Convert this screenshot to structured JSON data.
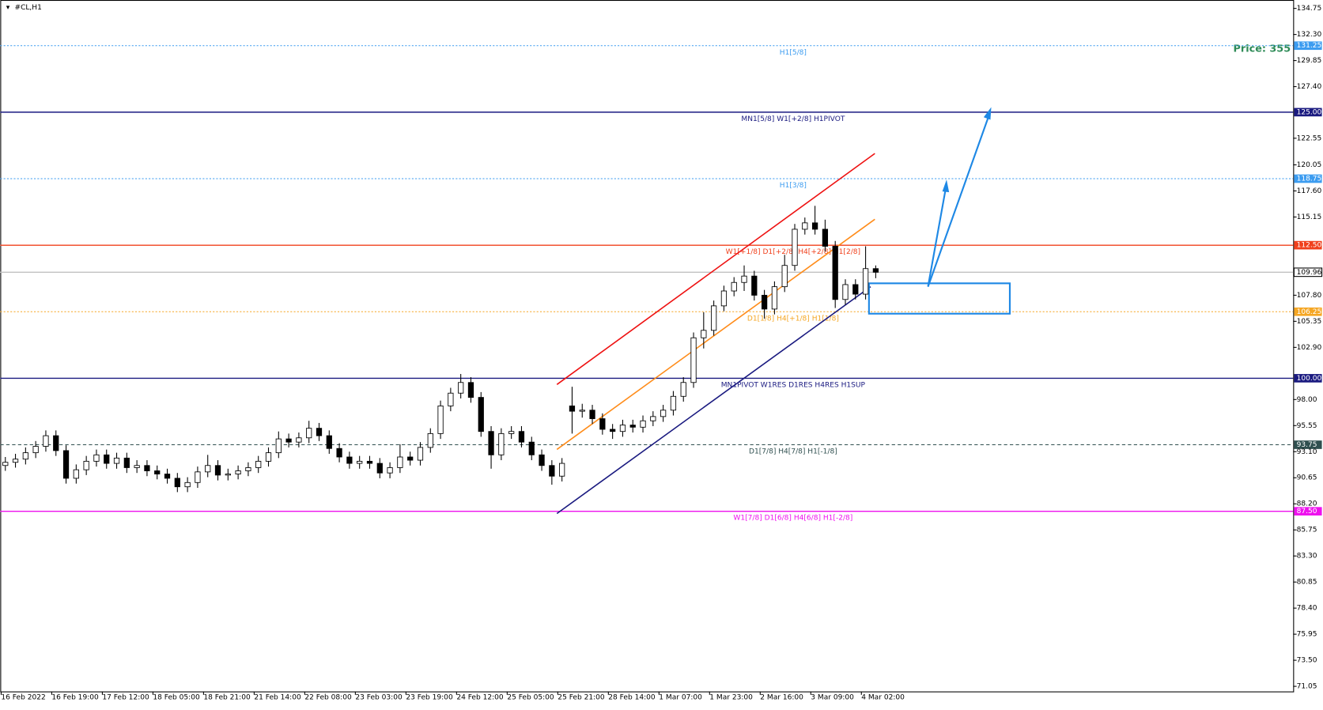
{
  "chart_data": {
    "type": "candlestick",
    "title": "#CL,H1",
    "annotation": "Price: 355",
    "categories": [
      "16 Feb 2022",
      "16 Feb 19:00",
      "17 Feb 12:00",
      "18 Feb 05:00",
      "18 Feb 21:00",
      "21 Feb 14:00",
      "22 Feb 08:00",
      "23 Feb 03:00",
      "23 Feb 19:00",
      "24 Feb 12:00",
      "25 Feb 05:00",
      "25 Feb 21:00",
      "28 Feb 14:00",
      "1 Mar 07:00",
      "1 Mar 23:00",
      "2 Mar 16:00",
      "3 Mar 09:00",
      "4 Mar 02:00"
    ],
    "open": [
      91.8,
      92.1,
      92.4,
      93.0,
      93.6,
      94.6,
      93.2,
      90.6,
      91.4,
      92.2,
      92.8,
      92.0,
      92.5,
      91.6,
      91.8,
      91.3,
      91.0,
      90.6,
      89.8,
      90.2,
      91.2,
      91.8,
      90.9,
      91.0,
      91.3,
      91.6,
      92.2,
      93.0,
      94.3,
      94.0,
      94.4,
      95.3,
      94.6,
      93.4,
      92.6,
      92.0,
      92.2,
      92.0,
      91.1,
      91.6,
      92.6,
      92.3,
      93.5,
      94.8,
      97.4,
      98.6,
      99.6,
      98.2,
      95.0,
      92.8,
      94.8,
      95.0,
      94.0,
      92.8,
      91.8,
      90.8,
      97.4,
      96.9,
      97.0,
      96.2,
      95.2,
      95.0,
      95.6,
      95.4,
      96.0,
      96.4,
      97.0,
      98.3,
      99.6,
      103.8,
      104.5,
      106.8,
      108.2,
      109.0,
      109.6,
      107.8,
      106.5,
      108.6,
      110.6,
      114.0,
      114.6,
      114.0,
      112.4,
      107.4,
      108.8,
      107.9,
      110.3
    ],
    "high": [
      92.6,
      92.9,
      93.5,
      94.1,
      95.1,
      95.1,
      93.7,
      91.9,
      92.7,
      93.3,
      93.3,
      93.0,
      93.0,
      92.3,
      92.3,
      91.8,
      91.5,
      91.1,
      90.7,
      91.7,
      92.8,
      92.3,
      91.5,
      91.8,
      92.1,
      92.7,
      93.5,
      95.0,
      94.8,
      94.9,
      96.0,
      95.8,
      95.1,
      93.9,
      93.1,
      92.7,
      92.7,
      92.5,
      92.1,
      93.8,
      93.1,
      94.0,
      95.3,
      97.9,
      99.1,
      100.4,
      100.1,
      98.7,
      95.5,
      95.3,
      95.5,
      95.5,
      94.5,
      93.3,
      92.3,
      92.5,
      99.2,
      97.6,
      97.5,
      96.7,
      95.7,
      96.1,
      96.1,
      96.5,
      96.9,
      97.5,
      98.8,
      100.1,
      104.3,
      106.2,
      107.3,
      108.7,
      109.5,
      110.6,
      110.1,
      108.3,
      109.1,
      111.6,
      114.5,
      115.1,
      116.2,
      114.9,
      112.9,
      109.3,
      109.3,
      112.4,
      110.6
    ],
    "low": [
      91.3,
      91.6,
      91.9,
      92.5,
      93.1,
      92.7,
      90.1,
      90.1,
      90.9,
      91.7,
      91.5,
      91.5,
      91.1,
      91.1,
      90.8,
      90.5,
      90.1,
      89.3,
      89.3,
      89.7,
      90.7,
      90.4,
      90.4,
      90.5,
      90.8,
      91.1,
      91.7,
      92.5,
      93.5,
      93.5,
      93.9,
      94.1,
      92.9,
      92.1,
      91.5,
      91.5,
      91.5,
      90.6,
      90.6,
      91.1,
      91.8,
      91.8,
      93.0,
      94.3,
      96.9,
      98.1,
      97.7,
      94.5,
      91.5,
      92.3,
      94.3,
      93.5,
      92.3,
      91.3,
      90.0,
      90.3,
      94.8,
      96.3,
      95.7,
      94.7,
      94.3,
      94.5,
      94.9,
      94.9,
      95.5,
      95.9,
      96.5,
      97.8,
      99.1,
      102.8,
      104.0,
      106.3,
      107.7,
      108.2,
      107.3,
      105.6,
      106.0,
      108.1,
      110.1,
      113.5,
      113.5,
      111.9,
      106.6,
      106.9,
      107.4,
      107.4,
      109.4
    ],
    "close": [
      92.1,
      92.4,
      93.0,
      93.6,
      94.6,
      93.2,
      90.6,
      91.4,
      92.2,
      92.8,
      92.0,
      92.5,
      91.6,
      91.8,
      91.3,
      91.0,
      90.6,
      89.8,
      90.2,
      91.2,
      91.8,
      90.9,
      91.0,
      91.3,
      91.6,
      92.2,
      93.0,
      94.3,
      94.0,
      94.4,
      95.3,
      94.6,
      93.4,
      92.6,
      92.0,
      92.2,
      92.0,
      91.1,
      91.6,
      92.6,
      92.3,
      93.5,
      94.8,
      97.4,
      98.6,
      99.6,
      98.2,
      95.0,
      92.8,
      94.8,
      95.0,
      94.0,
      92.8,
      91.8,
      90.8,
      92.0,
      96.9,
      97.0,
      96.2,
      95.2,
      95.0,
      95.6,
      95.4,
      96.0,
      96.4,
      97.0,
      98.3,
      99.6,
      103.8,
      104.5,
      106.8,
      108.2,
      109.0,
      109.6,
      107.8,
      106.5,
      108.6,
      110.6,
      114.0,
      114.6,
      114.0,
      112.4,
      107.4,
      108.8,
      107.9,
      110.3,
      109.96
    ],
    "levels": [
      {
        "price": 131.25,
        "price_label": "131.25",
        "text": "H1[5/8]",
        "color": "#3c9cf0",
        "style": "dotted"
      },
      {
        "price": 125,
        "price_label": "125.00",
        "text": "MN1[5/8] W1[+2/8] H1PIVOT",
        "color": "#1a1a80",
        "style": "solid"
      },
      {
        "price": 118.75,
        "price_label": "118.75",
        "text": "H1[3/8]",
        "color": "#3c9cf0",
        "style": "dotted"
      },
      {
        "price": 112.5,
        "price_label": "112.50",
        "text": "W1[+1/8] D1[+2/8] H4[+2/8] H1[2/8]",
        "color": "#f0401c",
        "style": "solid"
      },
      {
        "price": 109.96,
        "price_label": "109.96",
        "color": "#c0c0c0",
        "style": "solid"
      },
      {
        "price": 106.25,
        "price_label": "106.25",
        "text": "D1[1/8] H4[+1/8] H1[1/8]",
        "color": "#f5a623",
        "style": "dotted"
      },
      {
        "price": 100,
        "price_label": "100.00",
        "text": "MN1PIVOT W1RES D1RES H4RES H1SUP",
        "color": "#1a1a80",
        "style": "solid"
      },
      {
        "price": 93.75,
        "price_label": "93.75",
        "text": "D1[7/8] H4[7/8] H1[-1/8]",
        "color": "#2f4f4f",
        "style": "dashed"
      },
      {
        "price": 87.5,
        "price_label": "87.50",
        "text": "W1[7/8] D1[6/8] H4[6/8] H1[-2/8]",
        "color": "#ee11ee",
        "style": "solid"
      }
    ],
    "ylim": [
      70.57,
      135.54
    ],
    "yticks": [
      {
        "value": 134.75,
        "label": "134.75"
      },
      {
        "value": 132.3,
        "label": "132.30"
      },
      {
        "value": 129.85,
        "label": "129.85"
      },
      {
        "value": 127.4,
        "label": "127.40"
      },
      {
        "value": 122.55,
        "label": "122.55"
      },
      {
        "value": 120.05,
        "label": "120.05"
      },
      {
        "value": 117.6,
        "label": "117.60"
      },
      {
        "value": 115.15,
        "label": "115.15"
      },
      {
        "value": 107.8,
        "label": "107.80"
      },
      {
        "value": 105.35,
        "label": "105.35"
      },
      {
        "value": 102.9,
        "label": "102.90"
      },
      {
        "value": 98,
        "label": "98.00"
      },
      {
        "value": 95.55,
        "label": "95.55"
      },
      {
        "value": 93.1,
        "label": "93.10"
      },
      {
        "value": 90.65,
        "label": "90.65"
      },
      {
        "value": 88.2,
        "label": "88.20"
      },
      {
        "value": 85.75,
        "label": "85.75"
      },
      {
        "value": 83.3,
        "label": "83.30"
      },
      {
        "value": 80.85,
        "label": "80.85"
      },
      {
        "value": 78.4,
        "label": "78.40"
      },
      {
        "value": 75.95,
        "label": "75.95"
      },
      {
        "value": 73.5,
        "label": "73.50"
      },
      {
        "value": 71.05,
        "label": "71.05"
      }
    ]
  }
}
